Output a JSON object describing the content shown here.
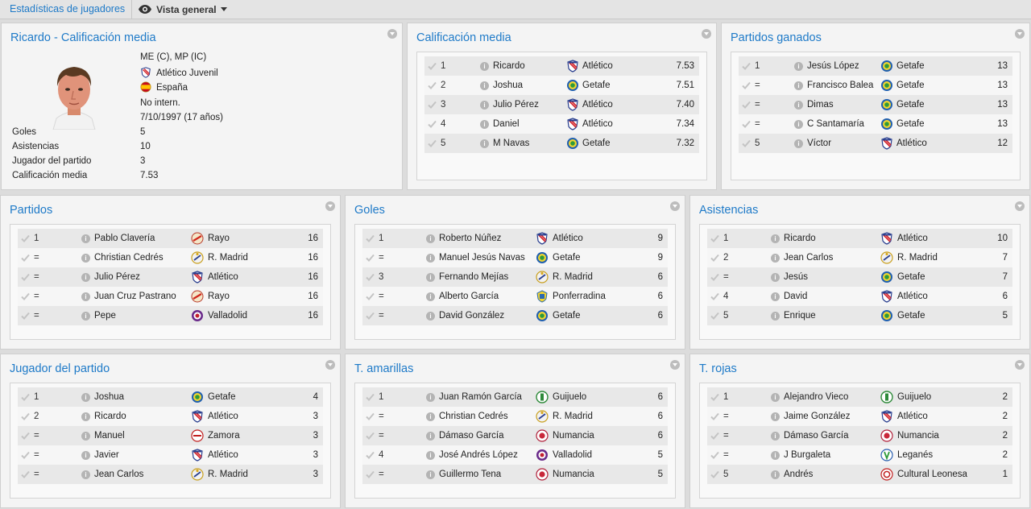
{
  "header": {
    "breadcrumb": "Estadísticas de jugadores",
    "view_label": "Vista general"
  },
  "profile": {
    "title": "Ricardo - Calificación media",
    "position": "ME (C), MP (IC)",
    "club": "Atlético Juvenil",
    "nation": "España",
    "intl": "No intern.",
    "dob": "7/10/1997 (17 años)",
    "stats": [
      {
        "label": "Goles",
        "value": "5"
      },
      {
        "label": "Asistencias",
        "value": "10"
      },
      {
        "label": "Jugador del partido",
        "value": "3"
      },
      {
        "label": "Calificación media",
        "value": "7.53"
      }
    ]
  },
  "panels": [
    {
      "id": "calificacion",
      "title": "Calificación media",
      "rows": [
        {
          "rank": "1",
          "name": "Ricardo",
          "club": "Atlético",
          "crest": "atletico",
          "value": "7.53"
        },
        {
          "rank": "2",
          "name": "Joshua",
          "club": "Getafe",
          "crest": "getafe",
          "value": "7.51"
        },
        {
          "rank": "3",
          "name": "Julio Pérez",
          "club": "Atlético",
          "crest": "atletico",
          "value": "7.40"
        },
        {
          "rank": "4",
          "name": "Daniel",
          "club": "Atlético",
          "crest": "atletico",
          "value": "7.34"
        },
        {
          "rank": "5",
          "name": "M Navas",
          "club": "Getafe",
          "crest": "getafe",
          "value": "7.32"
        }
      ]
    },
    {
      "id": "ganados",
      "title": "Partidos ganados",
      "rows": [
        {
          "rank": "1",
          "name": "Jesús López",
          "club": "Getafe",
          "crest": "getafe",
          "value": "13"
        },
        {
          "rank": "=",
          "name": "Francisco Balea",
          "club": "Getafe",
          "crest": "getafe",
          "value": "13"
        },
        {
          "rank": "=",
          "name": "Dimas",
          "club": "Getafe",
          "crest": "getafe",
          "value": "13"
        },
        {
          "rank": "=",
          "name": "C Santamaría",
          "club": "Getafe",
          "crest": "getafe",
          "value": "13"
        },
        {
          "rank": "5",
          "name": "Víctor",
          "club": "Atlético",
          "crest": "atletico",
          "value": "12"
        }
      ]
    },
    {
      "id": "partidos",
      "title": "Partidos",
      "rows": [
        {
          "rank": "1",
          "name": "Pablo Clavería",
          "club": "Rayo",
          "crest": "rayo",
          "value": "16"
        },
        {
          "rank": "=",
          "name": "Christian Cedrés",
          "club": "R. Madrid",
          "crest": "rmadrid",
          "value": "16"
        },
        {
          "rank": "=",
          "name": "Julio Pérez",
          "club": "Atlético",
          "crest": "atletico",
          "value": "16"
        },
        {
          "rank": "=",
          "name": "Juan Cruz Pastrano",
          "club": "Rayo",
          "crest": "rayo",
          "value": "16"
        },
        {
          "rank": "=",
          "name": "Pepe",
          "club": "Valladolid",
          "crest": "valladolid",
          "value": "16"
        }
      ]
    },
    {
      "id": "goles",
      "title": "Goles",
      "rows": [
        {
          "rank": "1",
          "name": "Roberto Núñez",
          "club": "Atlético",
          "crest": "atletico",
          "value": "9"
        },
        {
          "rank": "=",
          "name": "Manuel Jesús Navas",
          "club": "Getafe",
          "crest": "getafe",
          "value": "9"
        },
        {
          "rank": "3",
          "name": "Fernando Mejías",
          "club": "R. Madrid",
          "crest": "rmadrid",
          "value": "6"
        },
        {
          "rank": "=",
          "name": "Alberto García",
          "club": "Ponferradina",
          "crest": "ponferradina",
          "value": "6"
        },
        {
          "rank": "=",
          "name": "David González",
          "club": "Getafe",
          "crest": "getafe",
          "value": "6"
        }
      ]
    },
    {
      "id": "asistencias",
      "title": "Asistencias",
      "rows": [
        {
          "rank": "1",
          "name": "Ricardo",
          "club": "Atlético",
          "crest": "atletico",
          "value": "10"
        },
        {
          "rank": "2",
          "name": "Jean Carlos",
          "club": "R. Madrid",
          "crest": "rmadrid",
          "value": "7"
        },
        {
          "rank": "=",
          "name": "Jesús",
          "club": "Getafe",
          "crest": "getafe",
          "value": "7"
        },
        {
          "rank": "4",
          "name": "David",
          "club": "Atlético",
          "crest": "atletico",
          "value": "6"
        },
        {
          "rank": "5",
          "name": "Enrique",
          "club": "Getafe",
          "crest": "getafe",
          "value": "5"
        }
      ]
    },
    {
      "id": "jugador",
      "title": "Jugador del partido",
      "rows": [
        {
          "rank": "1",
          "name": "Joshua",
          "club": "Getafe",
          "crest": "getafe",
          "value": "4"
        },
        {
          "rank": "2",
          "name": "Ricardo",
          "club": "Atlético",
          "crest": "atletico",
          "value": "3"
        },
        {
          "rank": "=",
          "name": "Manuel",
          "club": "Zamora",
          "crest": "zamora",
          "value": "3"
        },
        {
          "rank": "=",
          "name": "Javier",
          "club": "Atlético",
          "crest": "atletico",
          "value": "3"
        },
        {
          "rank": "=",
          "name": "Jean Carlos",
          "club": "R. Madrid",
          "crest": "rmadrid",
          "value": "3"
        }
      ]
    },
    {
      "id": "amarillas",
      "title": "T. amarillas",
      "rows": [
        {
          "rank": "1",
          "name": "Juan Ramón García",
          "club": "Guijuelo",
          "crest": "guijuelo",
          "value": "6"
        },
        {
          "rank": "=",
          "name": "Christian Cedrés",
          "club": "R. Madrid",
          "crest": "rmadrid",
          "value": "6"
        },
        {
          "rank": "=",
          "name": "Dámaso García",
          "club": "Numancia",
          "crest": "numancia",
          "value": "6"
        },
        {
          "rank": "4",
          "name": "José Andrés López",
          "club": "Valladolid",
          "crest": "valladolid",
          "value": "5"
        },
        {
          "rank": "=",
          "name": "Guillermo Tena",
          "club": "Numancia",
          "crest": "numancia",
          "value": "5"
        }
      ]
    },
    {
      "id": "rojas",
      "title": "T. rojas",
      "rows": [
        {
          "rank": "1",
          "name": "Alejandro Vieco",
          "club": "Guijuelo",
          "crest": "guijuelo",
          "value": "2"
        },
        {
          "rank": "=",
          "name": "Jaime González",
          "club": "Atlético",
          "crest": "atletico",
          "value": "2"
        },
        {
          "rank": "=",
          "name": "Dámaso García",
          "club": "Numancia",
          "crest": "numancia",
          "value": "2"
        },
        {
          "rank": "=",
          "name": "J Burgaleta",
          "club": "Leganés",
          "crest": "leganes",
          "value": "2"
        },
        {
          "rank": "5",
          "name": "Andrés",
          "club": "Cultural Leonesa",
          "crest": "cultural",
          "value": "1"
        }
      ]
    }
  ]
}
